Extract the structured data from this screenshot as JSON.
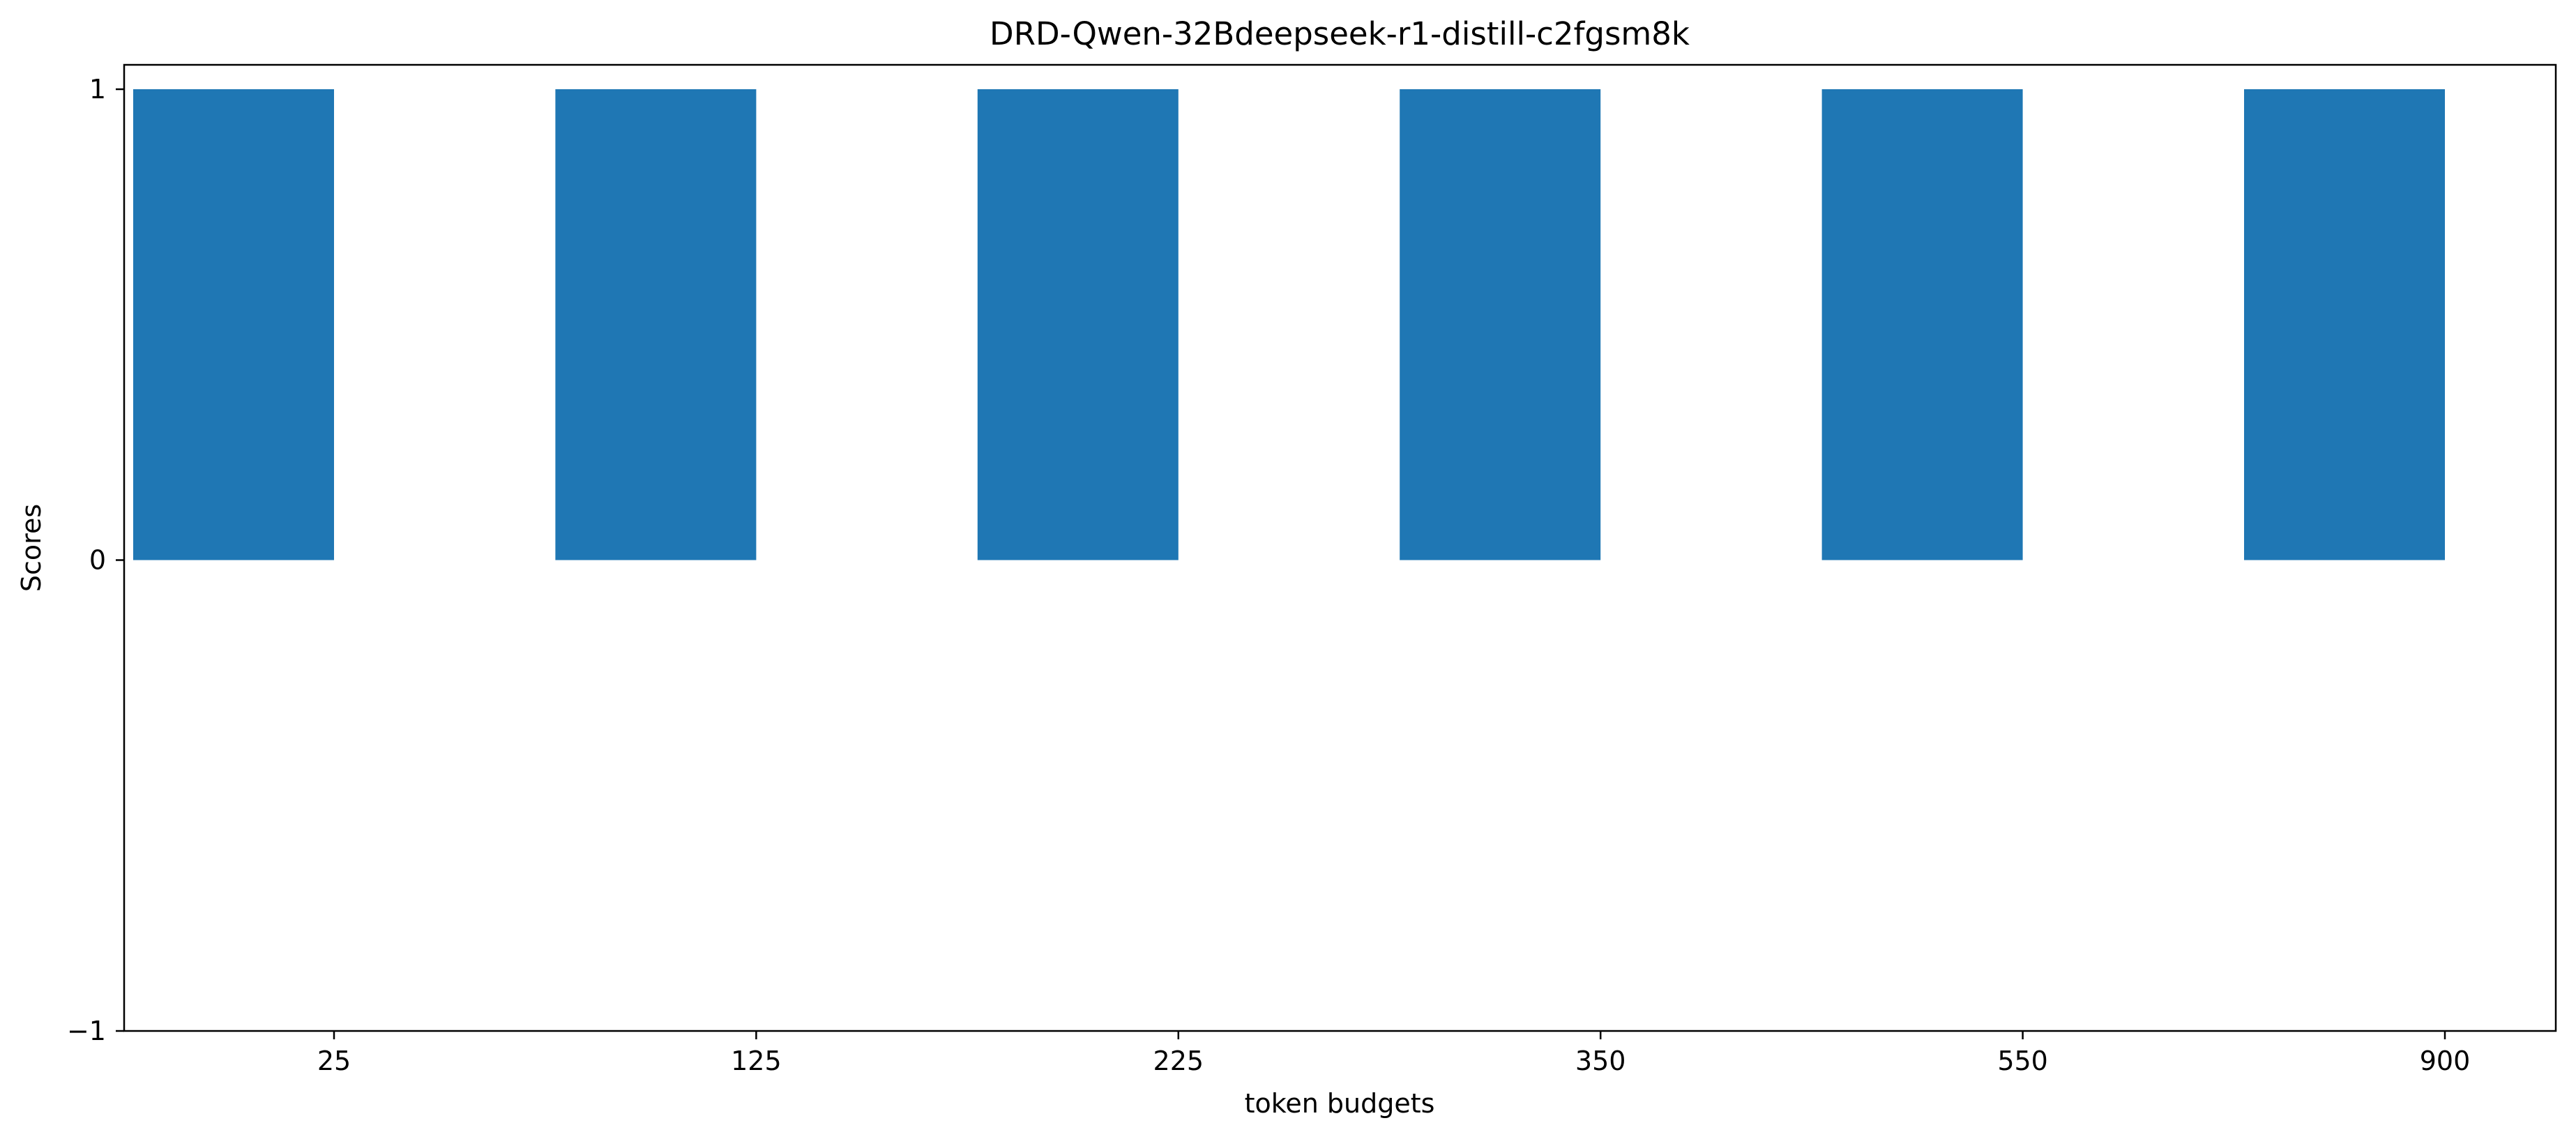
{
  "chart_data": {
    "type": "bar",
    "title": "DRD-Qwen-32Bdeepseek-r1-distill-c2fgsm8k",
    "xlabel": "token budgets",
    "ylabel": "Scores",
    "categories": [
      "25",
      "125",
      "225",
      "350",
      "550",
      "900"
    ],
    "values": [
      1,
      1,
      1,
      1,
      1,
      1
    ],
    "ylim": [
      -1,
      1
    ],
    "yticks": [
      -1,
      0,
      1
    ],
    "ytick_labels": [
      "−1",
      "0",
      "1"
    ],
    "grid": false,
    "legend": "none",
    "bar_color": "#1f77b4"
  }
}
